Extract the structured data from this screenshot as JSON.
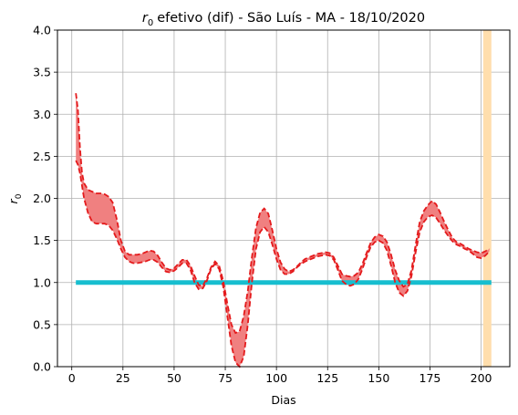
{
  "chart_data": {
    "type": "line",
    "title": "efetivo (dif) - São Luís - MA - 18/10/2020",
    "title_symbol": "r",
    "title_subscript": "0",
    "xlabel": "Dias",
    "ylabel_symbol": "r",
    "ylabel_subscript": "0",
    "xlim": [
      -7,
      214
    ],
    "ylim": [
      0,
      4
    ],
    "xticks": [
      0,
      25,
      50,
      75,
      100,
      125,
      150,
      175,
      200
    ],
    "yticks": [
      0.0,
      0.5,
      1.0,
      1.5,
      2.0,
      2.5,
      3.0,
      3.5,
      4.0
    ],
    "xtick_labels": [
      "0",
      "25",
      "50",
      "75",
      "100",
      "125",
      "150",
      "175",
      "200"
    ],
    "ytick_labels": [
      "0.0",
      "0.5",
      "1.0",
      "1.5",
      "2.0",
      "2.5",
      "3.0",
      "3.5",
      "4.0"
    ],
    "grid": true,
    "colors": {
      "band_fill": "#f08080",
      "bound_line": "#e41a1c",
      "reference_line": "#17becf",
      "highlight_span": "#ffdead"
    },
    "highlight_span": [
      201,
      205
    ],
    "reference_line": {
      "y": 1.0,
      "x": [
        2,
        205
      ]
    },
    "series": [
      {
        "x": [
          2,
          3,
          4,
          5,
          6,
          8,
          10,
          12,
          14,
          16,
          18,
          20,
          22,
          24,
          26,
          28,
          30,
          32,
          34,
          36,
          38,
          40,
          42,
          44,
          46,
          48,
          50,
          52,
          54,
          56,
          58,
          60,
          62,
          64,
          66,
          68,
          70,
          72,
          74,
          76,
          78,
          80,
          82,
          84,
          86,
          88,
          90,
          92,
          94,
          96,
          98,
          100,
          102,
          104,
          106,
          108,
          110,
          112,
          114,
          116,
          118,
          120,
          122,
          124,
          126,
          128,
          130,
          132,
          134,
          136,
          138,
          140,
          142,
          144,
          146,
          148,
          150,
          152,
          154,
          156,
          158,
          160,
          162,
          164,
          166,
          168,
          170,
          172,
          174,
          176,
          178,
          180,
          182,
          184,
          186,
          188,
          190,
          192,
          194,
          196,
          198,
          200,
          202,
          204
        ],
        "values": [
          3.25,
          3.05,
          2.6,
          2.3,
          2.18,
          2.1,
          2.08,
          2.06,
          2.06,
          2.05,
          2.02,
          1.95,
          1.75,
          1.5,
          1.37,
          1.33,
          1.33,
          1.33,
          1.34,
          1.36,
          1.38,
          1.37,
          1.32,
          1.24,
          1.17,
          1.15,
          1.17,
          1.22,
          1.27,
          1.27,
          1.2,
          1.08,
          0.97,
          0.96,
          1.05,
          1.18,
          1.25,
          1.2,
          1.02,
          0.75,
          0.5,
          0.4,
          0.42,
          0.6,
          0.9,
          1.3,
          1.65,
          1.83,
          1.88,
          1.82,
          1.62,
          1.4,
          1.24,
          1.16,
          1.13,
          1.15,
          1.19,
          1.24,
          1.28,
          1.3,
          1.32,
          1.34,
          1.35,
          1.36,
          1.35,
          1.3,
          1.2,
          1.1,
          1.08,
          1.07,
          1.08,
          1.12,
          1.22,
          1.35,
          1.47,
          1.54,
          1.57,
          1.55,
          1.48,
          1.33,
          1.15,
          1.02,
          0.95,
          0.98,
          1.15,
          1.45,
          1.72,
          1.85,
          1.92,
          1.97,
          1.93,
          1.83,
          1.72,
          1.62,
          1.53,
          1.48,
          1.46,
          1.43,
          1.4,
          1.38,
          1.36,
          1.35,
          1.37,
          1.4
        ]
      },
      {
        "x": [
          2,
          3,
          4,
          5,
          6,
          8,
          10,
          12,
          14,
          16,
          18,
          20,
          22,
          24,
          26,
          28,
          30,
          32,
          34,
          36,
          38,
          40,
          42,
          44,
          46,
          48,
          50,
          52,
          54,
          56,
          58,
          60,
          62,
          64,
          66,
          68,
          70,
          72,
          74,
          76,
          78,
          80,
          82,
          84,
          86,
          88,
          90,
          92,
          94,
          96,
          98,
          100,
          102,
          104,
          106,
          108,
          110,
          112,
          114,
          116,
          118,
          120,
          122,
          124,
          126,
          128,
          130,
          132,
          134,
          136,
          138,
          140,
          142,
          144,
          146,
          148,
          150,
          152,
          154,
          156,
          158,
          160,
          162,
          164,
          166,
          168,
          170,
          172,
          174,
          176,
          178,
          180,
          182,
          184,
          186,
          188,
          190,
          192,
          194,
          196,
          198,
          200,
          202,
          204
        ],
        "values": [
          2.45,
          2.4,
          2.3,
          2.15,
          2.0,
          1.82,
          1.72,
          1.7,
          1.7,
          1.7,
          1.68,
          1.62,
          1.52,
          1.4,
          1.3,
          1.25,
          1.23,
          1.23,
          1.24,
          1.25,
          1.27,
          1.27,
          1.24,
          1.18,
          1.13,
          1.12,
          1.14,
          1.18,
          1.23,
          1.23,
          1.15,
          1.0,
          0.92,
          0.93,
          1.02,
          1.16,
          1.22,
          1.16,
          0.95,
          0.6,
          0.25,
          0.05,
          0.0,
          0.12,
          0.5,
          1.0,
          1.4,
          1.6,
          1.66,
          1.6,
          1.45,
          1.28,
          1.15,
          1.1,
          1.1,
          1.13,
          1.18,
          1.22,
          1.25,
          1.27,
          1.29,
          1.31,
          1.32,
          1.33,
          1.32,
          1.27,
          1.15,
          1.02,
          0.98,
          0.96,
          0.98,
          1.04,
          1.16,
          1.3,
          1.42,
          1.48,
          1.5,
          1.47,
          1.38,
          1.2,
          1.0,
          0.88,
          0.84,
          0.9,
          1.08,
          1.36,
          1.6,
          1.72,
          1.78,
          1.8,
          1.77,
          1.7,
          1.62,
          1.55,
          1.49,
          1.45,
          1.43,
          1.4,
          1.38,
          1.34,
          1.3,
          1.29,
          1.32,
          1.37
        ]
      }
    ]
  }
}
